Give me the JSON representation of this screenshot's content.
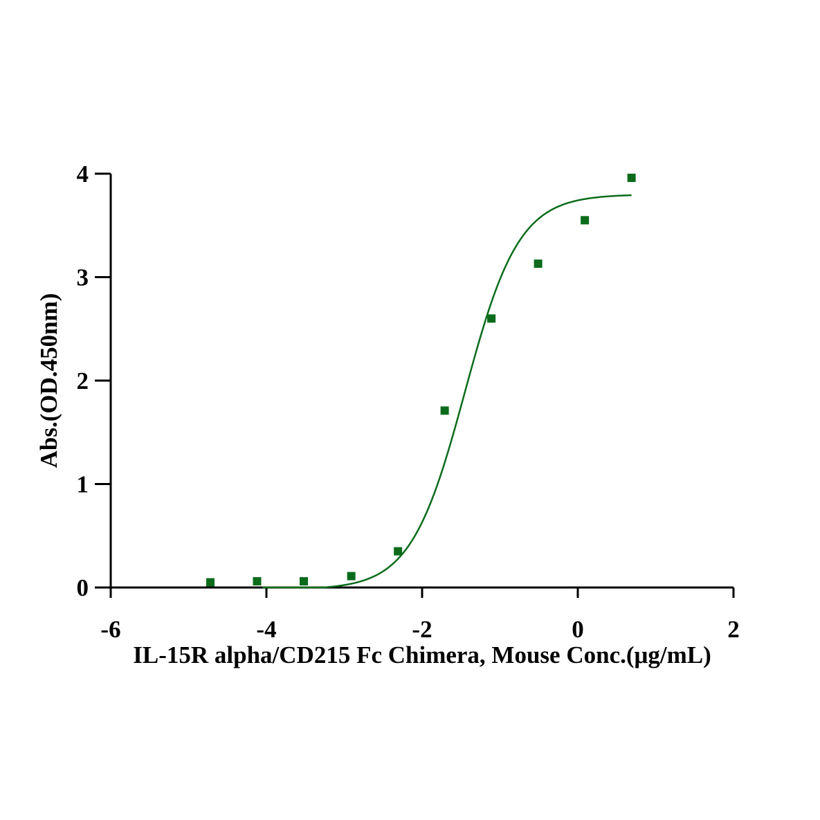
{
  "chart_data": {
    "type": "scatter",
    "title": "",
    "xlabel": "IL-15R alpha/CD215 Fc Chimera, Mouse Conc.(μg/mL)",
    "ylabel": "Abs.(OD.450nm)",
    "xlim": [
      -6,
      2
    ],
    "ylim": [
      0,
      4
    ],
    "x_ticks": [
      -6,
      -4,
      -2,
      0,
      2
    ],
    "y_ticks": [
      0,
      1,
      2,
      3,
      4
    ],
    "x_tick_labels": [
      "-6",
      "-4",
      "-2",
      "0",
      "2"
    ],
    "y_tick_labels": [
      "0",
      "1",
      "2",
      "3",
      "4"
    ],
    "grid": false,
    "legend": "none",
    "marker": "square",
    "color": "#0b6b1b",
    "points": [
      {
        "x": -4.72,
        "y": 0.05
      },
      {
        "x": -4.12,
        "y": 0.06
      },
      {
        "x": -3.52,
        "y": 0.06
      },
      {
        "x": -2.91,
        "y": 0.11
      },
      {
        "x": -2.31,
        "y": 0.35
      },
      {
        "x": -1.71,
        "y": 1.71
      },
      {
        "x": -1.11,
        "y": 2.6
      },
      {
        "x": -0.51,
        "y": 3.13
      },
      {
        "x": 0.09,
        "y": 3.55
      },
      {
        "x": 0.69,
        "y": 3.96
      }
    ],
    "fit": {
      "type": "4PL",
      "bottom": -0.02,
      "top": 3.8,
      "log_ec50": -1.45,
      "hill_slope": 1.25,
      "x_range": [
        -4.05,
        0.69
      ]
    }
  }
}
